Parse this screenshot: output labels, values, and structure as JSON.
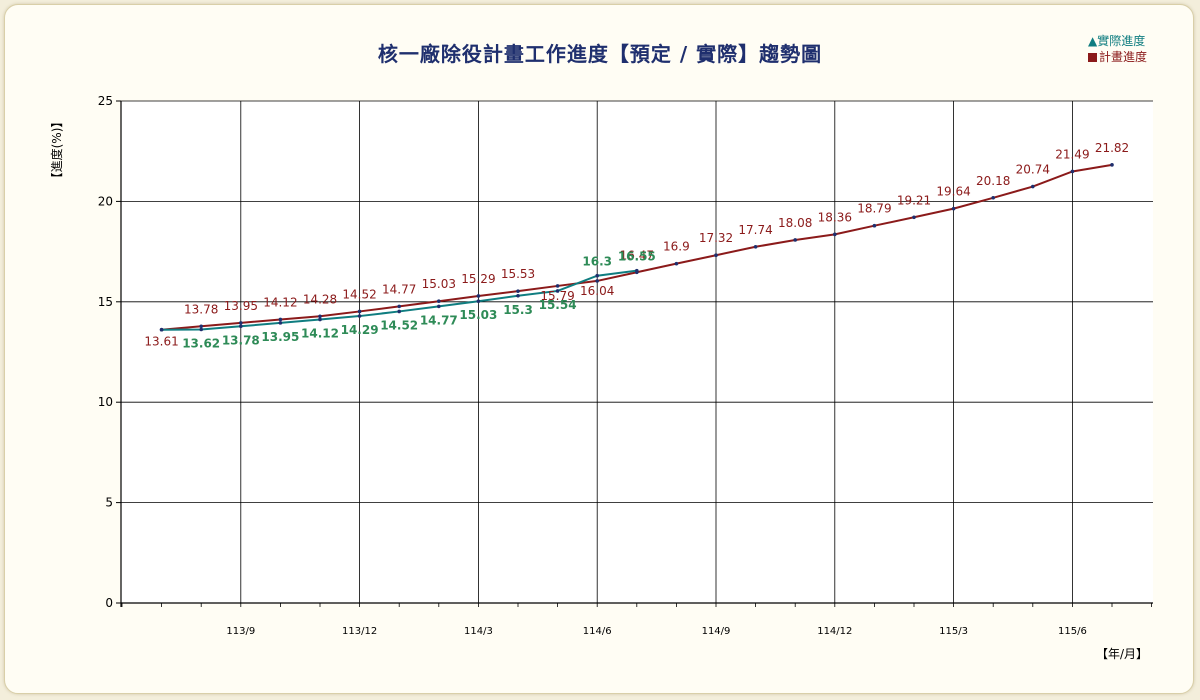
{
  "chart_data": {
    "type": "line",
    "title": "核一廠除役計畫工作進度【預定 / 實際】趨勢圖",
    "ylabel": "【進度(%)】",
    "xlabel": "【年/月】",
    "ylim": [
      0,
      25
    ],
    "y_ticks": [
      0,
      5,
      10,
      15,
      20,
      25
    ],
    "x_tick_labels": [
      "113/9",
      "113/12",
      "114/3",
      "114/6",
      "114/9",
      "114/12",
      "115/3",
      "115/6"
    ],
    "grid": true,
    "legend_position": "top-right",
    "series": [
      {
        "name": "計畫進度",
        "color": "#8b1a1a",
        "marker": "square",
        "values": [
          13.61,
          13.78,
          13.95,
          14.12,
          14.28,
          14.52,
          14.77,
          15.03,
          15.29,
          15.53,
          15.79,
          16.04,
          16.47,
          16.9,
          17.32,
          17.74,
          18.08,
          18.36,
          18.79,
          19.21,
          19.64,
          20.18,
          20.74,
          21.49,
          21.82
        ],
        "labels": [
          "13.61",
          "13.78",
          "13.95",
          "14.12",
          "14.28",
          "14.52",
          "14.77",
          "15.03",
          "15.29",
          "15.53",
          "15.79",
          "16.04",
          "16.47",
          "16.9",
          "17.32",
          "17.74",
          "18.08",
          "18.36",
          "18.79",
          "19.21",
          "19.64",
          "20.18",
          "20.74",
          "21.49",
          "21.82"
        ]
      },
      {
        "name": "實際進度",
        "color": "#0f7d80",
        "label_color": "#2e8b57",
        "marker": "triangle",
        "values": [
          13.61,
          13.62,
          13.78,
          13.95,
          14.12,
          14.29,
          14.52,
          14.77,
          15.03,
          15.3,
          15.54,
          16.3,
          16.55
        ],
        "labels": [
          "",
          "13.62",
          "13.78",
          "13.95",
          "14.12",
          "14.29",
          "14.52",
          "14.77",
          "15.03",
          "15.3",
          "15.54",
          "16.3",
          "16.55"
        ]
      }
    ]
  },
  "legend": {
    "actual": "▲實際進度",
    "plan": "計畫進度"
  }
}
